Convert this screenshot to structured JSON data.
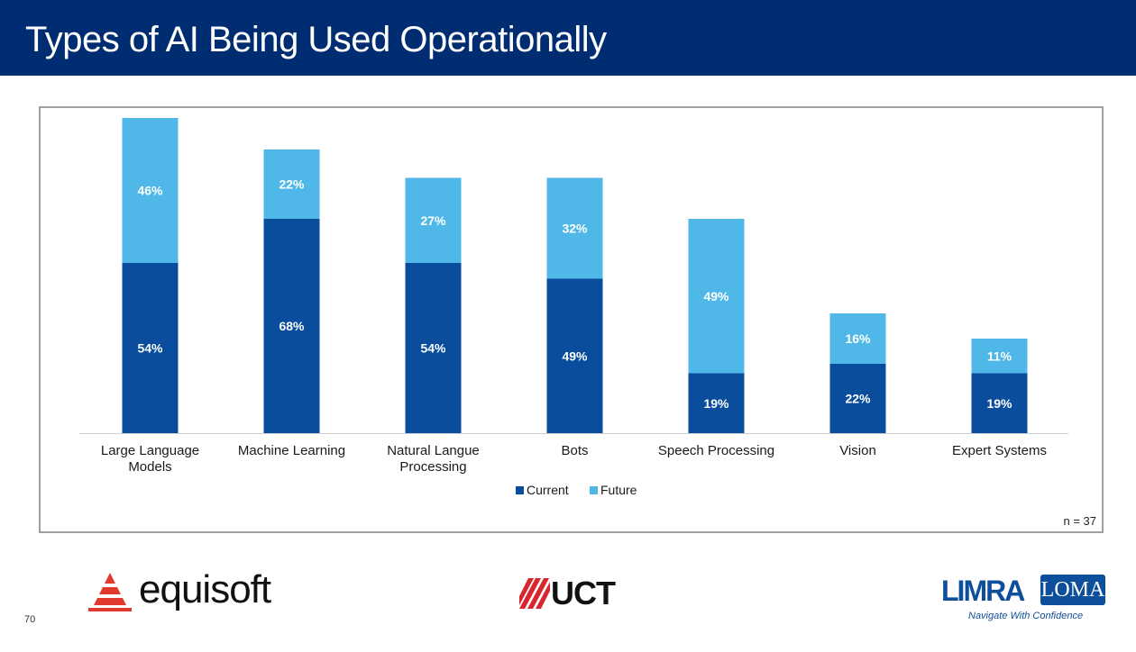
{
  "slide": {
    "title": "Types of AI Being Used Operationally",
    "page_number": "70",
    "n_label": "n = 37"
  },
  "logos": {
    "equisoft": "equisoft",
    "uct": "UCT",
    "limra": "LIMRA",
    "loma": "LOMA",
    "limra_tagline": "Navigate With Confidence"
  },
  "colors": {
    "header_bg": "#002d72",
    "current": "#0a4d9c",
    "future": "#4fb8e8"
  },
  "chart_data": {
    "type": "bar",
    "stacked": true,
    "title": "",
    "xlabel": "",
    "ylabel": "",
    "ylim": [
      0,
      100
    ],
    "grid": false,
    "legend_position": "bottom",
    "categories": [
      [
        "Large Language",
        "Models"
      ],
      [
        "Machine Learning"
      ],
      [
        "Natural Langue",
        "Processing"
      ],
      [
        "Bots"
      ],
      [
        "Speech Processing"
      ],
      [
        "Vision"
      ],
      [
        "Expert Systems"
      ]
    ],
    "series": [
      {
        "name": "Current",
        "values": [
          54,
          68,
          54,
          49,
          19,
          22,
          19
        ],
        "labels": [
          "54%",
          "68%",
          "54%",
          "49%",
          "19%",
          "22%",
          "19%"
        ]
      },
      {
        "name": "Future",
        "values": [
          46,
          22,
          27,
          32,
          49,
          16,
          11
        ],
        "labels": [
          "46%",
          "22%",
          "27%",
          "32%",
          "49%",
          "16%",
          "11%"
        ]
      }
    ]
  }
}
